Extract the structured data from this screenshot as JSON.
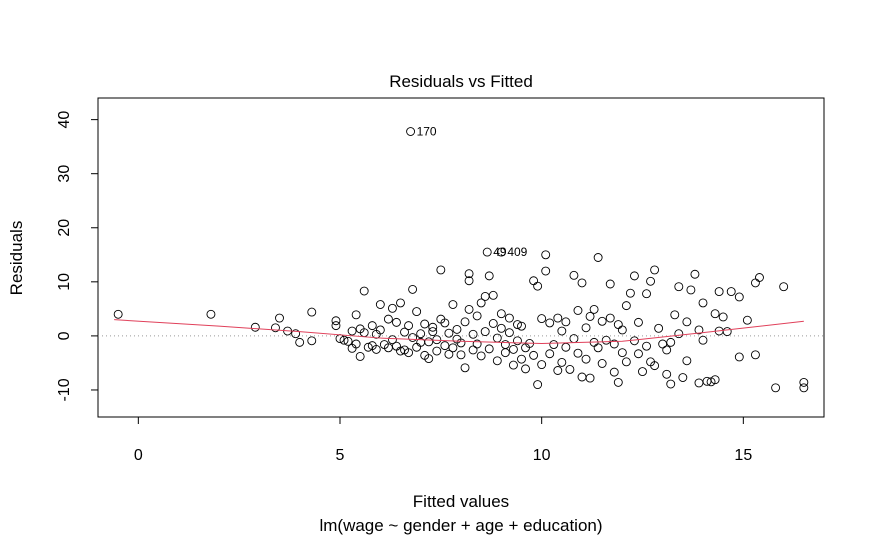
{
  "chart_data": {
    "type": "scatter",
    "title": "Residuals vs Fitted",
    "xlabel": "Fitted values",
    "subtitle": "lm(wage ~ gender + age + education)",
    "ylabel": "Residuals",
    "xlim": [
      -1,
      17
    ],
    "ylim": [
      -15,
      44
    ],
    "xticks": [
      0,
      5,
      10,
      15
    ],
    "yticks": [
      -10,
      0,
      10,
      20,
      30,
      40
    ],
    "grid": false,
    "zero_line": true,
    "labeled_points": [
      {
        "label": "170",
        "x": 6.75,
        "y": 37.8
      },
      {
        "label": "409",
        "x": 9.0,
        "y": 15.5
      },
      {
        "label": "49",
        "x": 8.65,
        "y": 15.5
      }
    ],
    "smooth": [
      [
        -0.6,
        3.0
      ],
      [
        2,
        1.8
      ],
      [
        4,
        0.8
      ],
      [
        6,
        -0.4
      ],
      [
        8,
        -1.0
      ],
      [
        10,
        -1.4
      ],
      [
        12,
        -1.0
      ],
      [
        14,
        0.6
      ],
      [
        16.5,
        2.7
      ]
    ],
    "points": [
      [
        -0.5,
        4
      ],
      [
        1.8,
        4
      ],
      [
        2.9,
        1.6
      ],
      [
        3.4,
        1.5
      ],
      [
        3.5,
        3.3
      ],
      [
        3.7,
        0.9
      ],
      [
        3.9,
        0.4
      ],
      [
        4,
        -1.2
      ],
      [
        4.3,
        -0.9
      ],
      [
        4.3,
        4.4
      ],
      [
        4.9,
        2.8
      ],
      [
        4.9,
        1.9
      ],
      [
        5,
        -0.5
      ],
      [
        5.1,
        -0.8
      ],
      [
        5.2,
        -1
      ],
      [
        5.3,
        0.9
      ],
      [
        5.3,
        -2.3
      ],
      [
        5.4,
        3.9
      ],
      [
        5.4,
        -1.5
      ],
      [
        5.5,
        1.3
      ],
      [
        5.5,
        -3.8
      ],
      [
        5.6,
        8.3
      ],
      [
        5.6,
        0.6
      ],
      [
        5.7,
        -2.1
      ],
      [
        5.8,
        -1.8
      ],
      [
        5.8,
        1.9
      ],
      [
        5.9,
        0.3
      ],
      [
        5.9,
        -2.5
      ],
      [
        6,
        1.1
      ],
      [
        6,
        5.8
      ],
      [
        6.1,
        -1.6
      ],
      [
        6.2,
        -2.2
      ],
      [
        6.2,
        3.1
      ],
      [
        6.3,
        5.1
      ],
      [
        6.3,
        -0.7
      ],
      [
        6.4,
        2.5
      ],
      [
        6.4,
        -1.9
      ],
      [
        6.5,
        6.1
      ],
      [
        6.5,
        -2.8
      ],
      [
        6.6,
        0.7
      ],
      [
        6.6,
        -2.6
      ],
      [
        6.7,
        1.9
      ],
      [
        6.7,
        -3.1
      ],
      [
        6.8,
        8.6
      ],
      [
        6.8,
        -0.3
      ],
      [
        6.9,
        4.5
      ],
      [
        6.9,
        -2.1
      ],
      [
        7,
        0.4
      ],
      [
        7,
        -1.2
      ],
      [
        7.1,
        2.2
      ],
      [
        7.1,
        -3.6
      ],
      [
        7.2,
        -1.1
      ],
      [
        7.2,
        -4.2
      ],
      [
        7.3,
        0.8
      ],
      [
        7.3,
        1.6
      ],
      [
        7.4,
        -0.7
      ],
      [
        7.4,
        -2.8
      ],
      [
        7.5,
        12.2
      ],
      [
        7.5,
        3.1
      ],
      [
        7.6,
        2.4
      ],
      [
        7.6,
        -1.8
      ],
      [
        7.7,
        0.5
      ],
      [
        7.7,
        -3.4
      ],
      [
        7.8,
        5.8
      ],
      [
        7.8,
        -2.2
      ],
      [
        7.9,
        1.2
      ],
      [
        7.9,
        -0.6
      ],
      [
        8,
        -3.5
      ],
      [
        8,
        -1.3
      ],
      [
        8.1,
        2.6
      ],
      [
        8.1,
        -5.9
      ],
      [
        8.2,
        10.2
      ],
      [
        8.2,
        11.5
      ],
      [
        8.2,
        4.9
      ],
      [
        8.3,
        0.3
      ],
      [
        8.3,
        -2.6
      ],
      [
        8.4,
        3.7
      ],
      [
        8.4,
        -1.5
      ],
      [
        8.5,
        6.1
      ],
      [
        8.5,
        -3.7
      ],
      [
        8.6,
        7.3
      ],
      [
        8.6,
        0.8
      ],
      [
        8.7,
        11.1
      ],
      [
        8.7,
        -2.4
      ],
      [
        8.8,
        7.5
      ],
      [
        8.8,
        2.3
      ],
      [
        8.9,
        -0.4
      ],
      [
        8.9,
        -4.6
      ],
      [
        9,
        4.1
      ],
      [
        9,
        1.4
      ],
      [
        9.1,
        -1.6
      ],
      [
        9.1,
        -3.1
      ],
      [
        9.2,
        0.6
      ],
      [
        9.2,
        3.3
      ],
      [
        9.3,
        -2.5
      ],
      [
        9.3,
        -5.4
      ],
      [
        9.4,
        2.1
      ],
      [
        9.4,
        -0.9
      ],
      [
        9.5,
        -4.3
      ],
      [
        9.5,
        1.8
      ],
      [
        9.6,
        -2.2
      ],
      [
        9.6,
        -6.1
      ],
      [
        9.7,
        -1.4
      ],
      [
        9.8,
        10.2
      ],
      [
        9.8,
        -3.6
      ],
      [
        9.9,
        9.2
      ],
      [
        9.9,
        -9
      ],
      [
        10,
        3.2
      ],
      [
        10,
        -5.3
      ],
      [
        10.1,
        12
      ],
      [
        10.1,
        15
      ],
      [
        10.2,
        2.4
      ],
      [
        10.2,
        -3.3
      ],
      [
        10.3,
        -1.6
      ],
      [
        10.4,
        3.3
      ],
      [
        10.4,
        -6.4
      ],
      [
        10.5,
        0.9
      ],
      [
        10.5,
        -4.9
      ],
      [
        10.6,
        2.6
      ],
      [
        10.6,
        -2.1
      ],
      [
        10.7,
        -6.2
      ],
      [
        10.8,
        11.2
      ],
      [
        10.8,
        -0.5
      ],
      [
        10.9,
        4.7
      ],
      [
        10.9,
        -3.2
      ],
      [
        11,
        9.8
      ],
      [
        11,
        -7.6
      ],
      [
        11.1,
        1.5
      ],
      [
        11.1,
        -4.3
      ],
      [
        11.2,
        3.6
      ],
      [
        11.2,
        -7.8
      ],
      [
        11.3,
        -1.2
      ],
      [
        11.3,
        4.9
      ],
      [
        11.4,
        14.5
      ],
      [
        11.4,
        -2.2
      ],
      [
        11.5,
        -5.1
      ],
      [
        11.5,
        2.7
      ],
      [
        11.6,
        -0.8
      ],
      [
        11.7,
        9.6
      ],
      [
        11.7,
        3.3
      ],
      [
        11.8,
        -6.7
      ],
      [
        11.8,
        -1.5
      ],
      [
        11.9,
        -8.6
      ],
      [
        11.9,
        2.1
      ],
      [
        12,
        -3.1
      ],
      [
        12,
        1.1
      ],
      [
        12.1,
        5.6
      ],
      [
        12.1,
        -4.8
      ],
      [
        12.2,
        7.9
      ],
      [
        12.3,
        11.1
      ],
      [
        12.3,
        -0.9
      ],
      [
        12.4,
        2.5
      ],
      [
        12.4,
        -3.3
      ],
      [
        12.5,
        -6.6
      ],
      [
        12.6,
        7.8
      ],
      [
        12.6,
        -1.9
      ],
      [
        12.7,
        -4.8
      ],
      [
        12.7,
        10.1
      ],
      [
        12.8,
        12.2
      ],
      [
        12.8,
        -5.5
      ],
      [
        12.9,
        1.4
      ],
      [
        13,
        -1.5
      ],
      [
        13.1,
        -7.1
      ],
      [
        13.1,
        -2.6
      ],
      [
        13.2,
        -8.9
      ],
      [
        13.2,
        -1.2
      ],
      [
        13.3,
        3.9
      ],
      [
        13.4,
        9.1
      ],
      [
        13.4,
        0.4
      ],
      [
        13.5,
        -7.7
      ],
      [
        13.6,
        2.6
      ],
      [
        13.6,
        -4.6
      ],
      [
        13.7,
        8.5
      ],
      [
        13.8,
        11.4
      ],
      [
        13.9,
        -8.7
      ],
      [
        13.9,
        1.1
      ],
      [
        14,
        6.1
      ],
      [
        14,
        -0.8
      ],
      [
        14.1,
        -8.4
      ],
      [
        14.2,
        -8.5
      ],
      [
        14.3,
        -8.1
      ],
      [
        14.3,
        4.1
      ],
      [
        14.4,
        8.2
      ],
      [
        14.4,
        0.9
      ],
      [
        14.5,
        3.5
      ],
      [
        14.6,
        0.8
      ],
      [
        14.7,
        8.2
      ],
      [
        14.9,
        -3.9
      ],
      [
        14.9,
        7.2
      ],
      [
        15.1,
        2.9
      ],
      [
        15.3,
        9.8
      ],
      [
        15.3,
        -3.5
      ],
      [
        15.4,
        10.8
      ],
      [
        15.8,
        -9.6
      ],
      [
        16,
        9.1
      ],
      [
        16.5,
        -9.6
      ],
      [
        16.5,
        -8.6
      ]
    ]
  }
}
